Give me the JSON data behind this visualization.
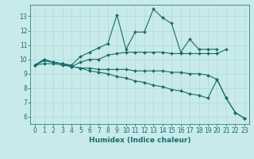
{
  "xlabel": "Humidex (Indice chaleur)",
  "background_color": "#c8eaea",
  "grid_color": "#b0d8d8",
  "line_color": "#1a6b6b",
  "xlim": [
    -0.5,
    23.5
  ],
  "ylim": [
    5.5,
    13.8
  ],
  "yticks": [
    6,
    7,
    8,
    9,
    10,
    11,
    12,
    13
  ],
  "xticks": [
    0,
    1,
    2,
    3,
    4,
    5,
    6,
    7,
    8,
    9,
    10,
    11,
    12,
    13,
    14,
    15,
    16,
    17,
    18,
    19,
    20,
    21,
    22,
    23
  ],
  "series": [
    [
      9.6,
      10.0,
      9.8,
      9.7,
      9.6,
      10.2,
      10.5,
      10.8,
      11.1,
      13.1,
      10.7,
      11.9,
      11.9,
      13.5,
      12.9,
      12.5,
      10.5,
      11.4,
      10.7,
      10.7,
      10.7,
      null,
      null,
      null
    ],
    [
      9.6,
      10.0,
      9.8,
      9.7,
      9.5,
      9.8,
      10.0,
      10.0,
      10.3,
      10.4,
      10.5,
      10.5,
      10.5,
      10.5,
      10.5,
      10.4,
      10.4,
      10.4,
      10.4,
      10.4,
      10.4,
      10.7,
      null,
      null
    ],
    [
      9.6,
      9.9,
      9.8,
      9.7,
      9.5,
      9.4,
      9.4,
      9.3,
      9.3,
      9.3,
      9.3,
      9.2,
      9.2,
      9.2,
      9.2,
      9.1,
      9.1,
      9.0,
      9.0,
      8.9,
      8.6,
      7.3,
      6.3,
      5.9
    ],
    [
      9.6,
      9.7,
      9.7,
      9.6,
      9.5,
      9.4,
      9.2,
      9.1,
      9.0,
      8.8,
      8.7,
      8.5,
      8.4,
      8.2,
      8.1,
      7.9,
      7.8,
      7.6,
      7.5,
      7.3,
      8.6,
      7.3,
      6.3,
      5.9
    ]
  ],
  "marker": "D",
  "markersize": 2.0,
  "linewidth": 0.8,
  "tick_fontsize": 5.5,
  "xlabel_fontsize": 6.5
}
